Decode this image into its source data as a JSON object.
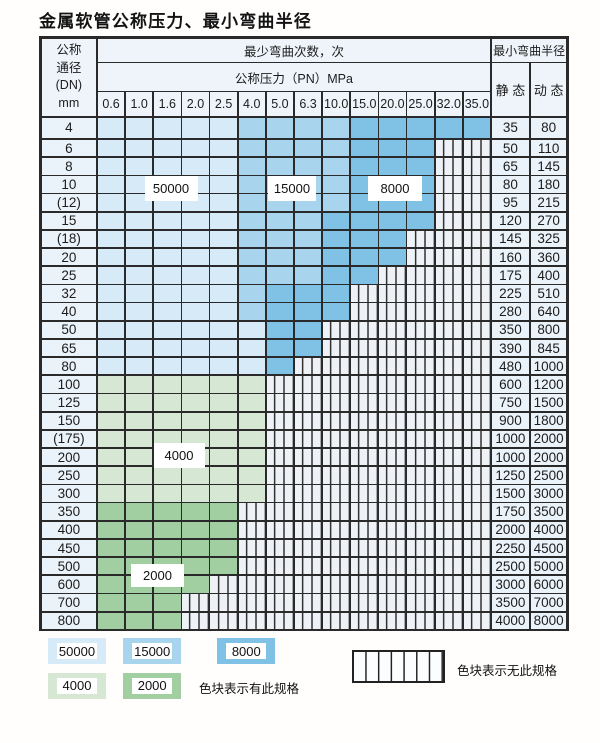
{
  "title": "金属软管公称压力、最小弯曲半径",
  "table": {
    "header": {
      "dn_lines": [
        "公称",
        "通径",
        "(DN)",
        "mm"
      ],
      "cycles": "最少弯曲次数，次",
      "pressure": "公称压力（PN）MPa",
      "pressure_values": [
        "0.6",
        "1.0",
        "1.6",
        "2.0",
        "2.5",
        "4.0",
        "5.0",
        "6.3",
        "10.0",
        "15.0",
        "20.0",
        "25.0",
        "32.0",
        "35.0"
      ],
      "radius": "最小弯曲半径",
      "static": "静 态",
      "dynamic": "动 态"
    },
    "zone_code_key": {
      "1": "cycles_50000",
      "2": "cycles_15000",
      "3": "cycles_8000",
      "4": "cycles_4000",
      "5": "cycles_2000",
      "0": "no_spec_hatch"
    },
    "rows": [
      {
        "dn": "4",
        "codes": "11111222233333",
        "static": "35",
        "dynamic": "80"
      },
      {
        "dn": "6",
        "codes": "11111222233300",
        "static": "50",
        "dynamic": "110"
      },
      {
        "dn": "8",
        "codes": "11111222233300",
        "static": "65",
        "dynamic": "145"
      },
      {
        "dn": "10",
        "codes": "11111222233300",
        "static": "80",
        "dynamic": "180"
      },
      {
        "dn": "(12)",
        "codes": "11111222233300",
        "static": "95",
        "dynamic": "215"
      },
      {
        "dn": "15",
        "codes": "11111222333300",
        "static": "120",
        "dynamic": "270"
      },
      {
        "dn": "(18)",
        "codes": "11111222333000",
        "static": "145",
        "dynamic": "325"
      },
      {
        "dn": "20",
        "codes": "11111222333000",
        "static": "160",
        "dynamic": "360"
      },
      {
        "dn": "25",
        "codes": "11111222330000",
        "static": "175",
        "dynamic": "400"
      },
      {
        "dn": "32",
        "codes": "11111233300000",
        "static": "225",
        "dynamic": "510"
      },
      {
        "dn": "40",
        "codes": "11111233300000",
        "static": "280",
        "dynamic": "640"
      },
      {
        "dn": "50",
        "codes": "11111133000000",
        "static": "350",
        "dynamic": "800"
      },
      {
        "dn": "65",
        "codes": "11111133000000",
        "static": "390",
        "dynamic": "845"
      },
      {
        "dn": "80",
        "codes": "11111130000000",
        "static": "480",
        "dynamic": "1000"
      },
      {
        "dn": "100",
        "codes": "44444400000000",
        "static": "600",
        "dynamic": "1200"
      },
      {
        "dn": "125",
        "codes": "44444400000000",
        "static": "750",
        "dynamic": "1500"
      },
      {
        "dn": "150",
        "codes": "44444400000000",
        "static": "900",
        "dynamic": "1800"
      },
      {
        "dn": "(175)",
        "codes": "44444400000000",
        "static": "1000",
        "dynamic": "2000"
      },
      {
        "dn": "200",
        "codes": "44444400000000",
        "static": "1000",
        "dynamic": "2000"
      },
      {
        "dn": "250",
        "codes": "44444400000000",
        "static": "1250",
        "dynamic": "2500"
      },
      {
        "dn": "300",
        "codes": "44444400000000",
        "static": "1500",
        "dynamic": "3000"
      },
      {
        "dn": "350",
        "codes": "55555000000000",
        "static": "1750",
        "dynamic": "3500"
      },
      {
        "dn": "400",
        "codes": "55555000000000",
        "static": "2000",
        "dynamic": "4000"
      },
      {
        "dn": "450",
        "codes": "55555000000000",
        "static": "2250",
        "dynamic": "4500"
      },
      {
        "dn": "500",
        "codes": "55555000000000",
        "static": "2500",
        "dynamic": "5000"
      },
      {
        "dn": "600",
        "codes": "55550000000000",
        "static": "3000",
        "dynamic": "6000"
      },
      {
        "dn": "700",
        "codes": "55500000000000",
        "static": "3500",
        "dynamic": "7000"
      },
      {
        "dn": "800",
        "codes": "55500000000000",
        "static": "4000",
        "dynamic": "8000"
      }
    ],
    "zone_labels": [
      "50000",
      "15000",
      "8000",
      "4000",
      "2000"
    ]
  },
  "colors": {
    "cycles_50000": "#d7eaf7",
    "cycles_15000": "#a9d4ee",
    "cycles_8000": "#7fc2e6",
    "cycles_4000": "#d6e8d3",
    "cycles_2000": "#a2cfa1",
    "hatch_bg": "#eef2f7",
    "plain_cell": "#ebf3fa",
    "header_cell": "#eef4fa",
    "grid_line": "#2a2a2a"
  },
  "legend": {
    "items": [
      {
        "label": "50000",
        "color": "cycles_50000"
      },
      {
        "label": "15000",
        "color": "cycles_15000"
      },
      {
        "label": "8000",
        "color": "cycles_8000"
      },
      {
        "label": "4000",
        "color": "cycles_4000"
      },
      {
        "label": "2000",
        "color": "cycles_2000"
      }
    ],
    "note_has": "色块表示有此规格",
    "note_none": "色块表示无此规格"
  },
  "chart_data": {
    "type": "table",
    "title": "金属软管公称压力、最小弯曲半径",
    "columns": [
      "公称通径(DN)mm",
      "0.6",
      "1.0",
      "1.6",
      "2.0",
      "2.5",
      "4.0",
      "5.0",
      "6.3",
      "10.0",
      "15.0",
      "20.0",
      "25.0",
      "32.0",
      "35.0",
      "静态",
      "动态"
    ],
    "column_group_labels": {
      "pressure_columns": "最少弯曲次数，次 / 公称压力（PN）MPa",
      "radius_columns": "最小弯曲半径"
    },
    "dn_values": [
      "4",
      "6",
      "8",
      "10",
      "(12)",
      "15",
      "(18)",
      "20",
      "25",
      "32",
      "40",
      "50",
      "65",
      "80",
      "100",
      "125",
      "150",
      "(175)",
      "200",
      "250",
      "300",
      "350",
      "400",
      "450",
      "500",
      "600",
      "700",
      "800"
    ],
    "static_radius": [
      35,
      50,
      65,
      80,
      95,
      120,
      145,
      160,
      175,
      225,
      280,
      350,
      390,
      480,
      600,
      750,
      900,
      1000,
      1000,
      1250,
      1500,
      1750,
      2000,
      2250,
      2500,
      3000,
      3500,
      4000
    ],
    "dynamic_radius": [
      80,
      110,
      145,
      180,
      215,
      270,
      325,
      360,
      400,
      510,
      640,
      800,
      845,
      1000,
      1200,
      1500,
      1800,
      2000,
      2000,
      2500,
      3000,
      3500,
      4000,
      4500,
      5000,
      6000,
      7000,
      8000
    ],
    "cycle_zones": {
      "50000": "lightest blue cells",
      "15000": "light blue cells",
      "8000": "medium blue cells",
      "4000": "light green cells",
      "2000": "medium green cells",
      "hatched": "无此规格 (no specification)"
    }
  }
}
